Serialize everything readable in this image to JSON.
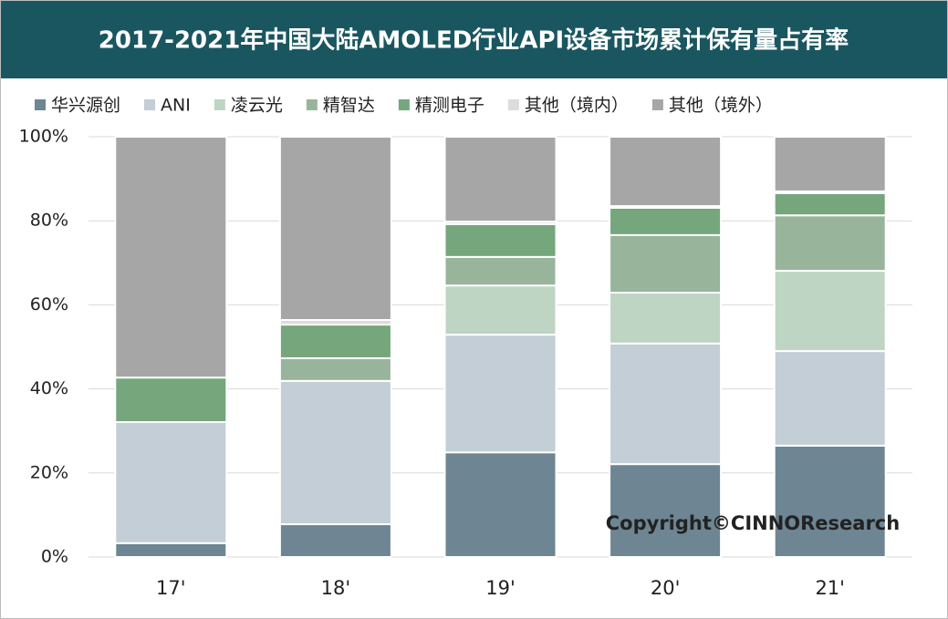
{
  "chart_data": {
    "type": "stacked_bar",
    "title": "2017-2021年中国大陆AMOLED行业API设备市场累计保有量占有率",
    "categories": [
      "17'",
      "18'",
      "19'",
      "20'",
      "21'"
    ],
    "series": [
      {
        "name": "华兴源创",
        "color": "#6e8593",
        "values": [
          3.3,
          7.8,
          24.9,
          22.1,
          26.5
        ]
      },
      {
        "name": "ANI",
        "color": "#c3ced6",
        "values": [
          28.8,
          34.1,
          28.0,
          28.7,
          22.5
        ]
      },
      {
        "name": "凌云光",
        "color": "#bed5c4",
        "values": [
          0,
          0,
          11.7,
          12.1,
          19.1
        ]
      },
      {
        "name": "精智达",
        "color": "#98b59c",
        "values": [
          0,
          5.4,
          6.8,
          13.7,
          13.2
        ]
      },
      {
        "name": "精测电子",
        "color": "#75a67c",
        "values": [
          10.6,
          8.0,
          7.8,
          6.5,
          5.3
        ]
      },
      {
        "name": "其他（境内）",
        "color": "#dcdcdc",
        "values": [
          0,
          1.1,
          0.6,
          0.4,
          0.4
        ]
      },
      {
        "name": "其他（境外）",
        "color": "#a6a6a6",
        "values": [
          57.3,
          43.6,
          20.2,
          16.5,
          13.0
        ]
      }
    ],
    "ylim": [
      0,
      100
    ],
    "yticks": [
      {
        "value": 0,
        "label": "0%"
      },
      {
        "value": 20,
        "label": "20%"
      },
      {
        "value": 40,
        "label": "40%"
      },
      {
        "value": 60,
        "label": "60%"
      },
      {
        "value": 80,
        "label": "80%"
      },
      {
        "value": 100,
        "label": "100%"
      }
    ],
    "grid": true,
    "legend": "top",
    "annotation": "Copyright©CINNOResearch"
  }
}
